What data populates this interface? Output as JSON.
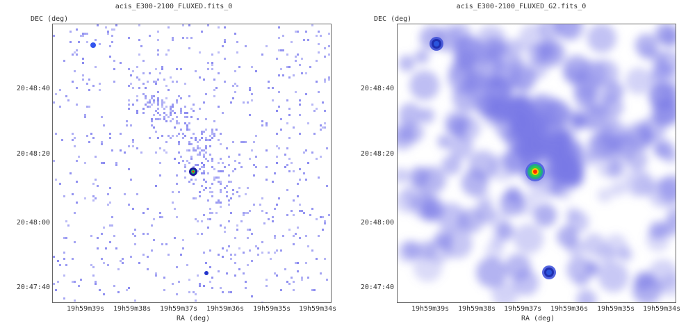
{
  "panels": [
    {
      "title": "acis_E300-2100_FLUXED.fits_0",
      "ylabel": "DEC (deg)",
      "xlabel": "RA (deg)",
      "style": "pixelated",
      "yticks": [
        "20:48:40",
        "20:48:20",
        "20:48:00",
        "20:47:40"
      ],
      "xticks": [
        "19h59m39s",
        "19h59m38s",
        "19h59m37s",
        "19h59m36s",
        "19h59m35s",
        "19h59m34s"
      ]
    },
    {
      "title": "acis_E300-2100_FLUXED_G2.fits_0",
      "ylabel": "DEC (deg)",
      "xlabel": "RA (deg)",
      "style": "smoothed",
      "yticks": [
        "20:48:40",
        "20:48:20",
        "20:48:00",
        "20:47:40"
      ],
      "xticks": [
        "19h59m39s",
        "19h59m38s",
        "19h59m37s",
        "19h59m36s",
        "19h59m35s",
        "19h59m34s"
      ]
    }
  ],
  "colors": {
    "background": "#ffffff",
    "low_counts": "#8c8cf0",
    "high_counts": "#ff2a00",
    "frame": "#666666"
  }
}
